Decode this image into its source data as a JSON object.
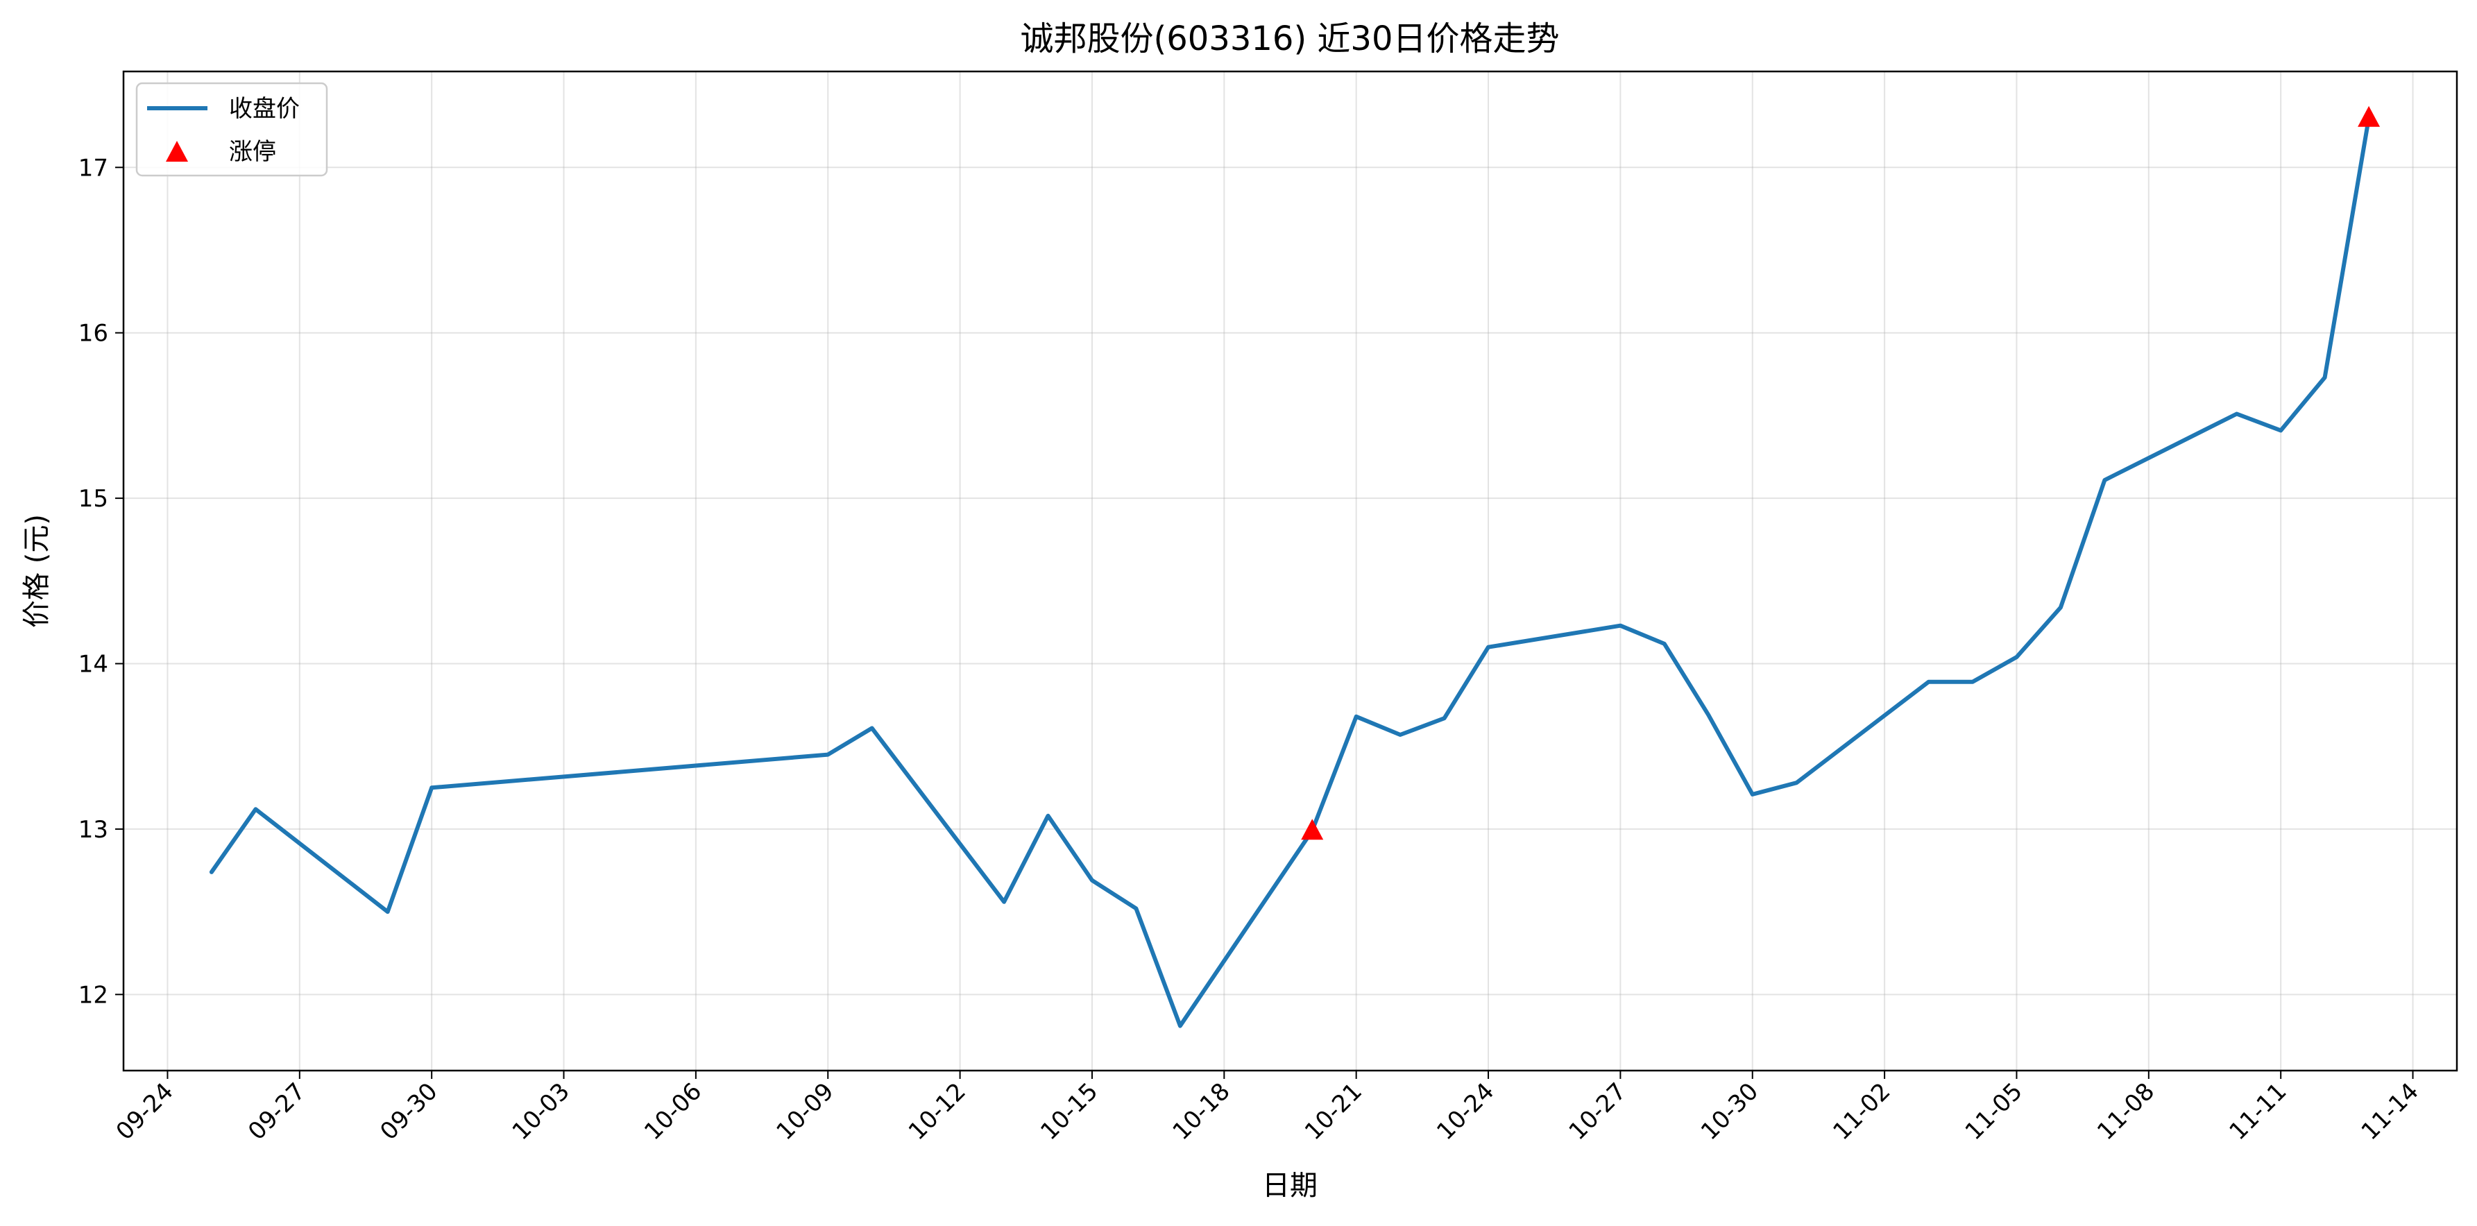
{
  "chart_data": {
    "type": "line",
    "title": "诚邦股份(603316) 近30日价格走势",
    "xlabel": "日期",
    "ylabel": "价格 (元)",
    "xlim": [
      "2025-09-23",
      "2025-11-15"
    ],
    "ylim": [
      11.54,
      17.58
    ],
    "grid": true,
    "legend_position": "top-left",
    "x_ticks": [
      {
        "date": "2025-09-24",
        "label": "09-24"
      },
      {
        "date": "2025-09-27",
        "label": "09-27"
      },
      {
        "date": "2025-09-30",
        "label": "09-30"
      },
      {
        "date": "2025-10-03",
        "label": "10-03"
      },
      {
        "date": "2025-10-06",
        "label": "10-06"
      },
      {
        "date": "2025-10-09",
        "label": "10-09"
      },
      {
        "date": "2025-10-12",
        "label": "10-12"
      },
      {
        "date": "2025-10-15",
        "label": "10-15"
      },
      {
        "date": "2025-10-18",
        "label": "10-18"
      },
      {
        "date": "2025-10-21",
        "label": "10-21"
      },
      {
        "date": "2025-10-24",
        "label": "10-24"
      },
      {
        "date": "2025-10-27",
        "label": "10-27"
      },
      {
        "date": "2025-10-30",
        "label": "10-30"
      },
      {
        "date": "2025-11-02",
        "label": "11-02"
      },
      {
        "date": "2025-11-05",
        "label": "11-05"
      },
      {
        "date": "2025-11-08",
        "label": "11-08"
      },
      {
        "date": "2025-11-11",
        "label": "11-11"
      },
      {
        "date": "2025-11-14",
        "label": "11-14"
      }
    ],
    "y_ticks": [
      {
        "value": 12,
        "label": "12"
      },
      {
        "value": 13,
        "label": "13"
      },
      {
        "value": 14,
        "label": "14"
      },
      {
        "value": 15,
        "label": "15"
      },
      {
        "value": 16,
        "label": "16"
      },
      {
        "value": 17,
        "label": "17"
      }
    ],
    "series": [
      {
        "name": "收盘价",
        "type": "line",
        "color": "#1f77b4",
        "x": [
          "2025-09-25",
          "2025-09-26",
          "2025-09-29",
          "2025-09-30",
          "2025-10-09",
          "2025-10-10",
          "2025-10-13",
          "2025-10-14",
          "2025-10-15",
          "2025-10-16",
          "2025-10-17",
          "2025-10-20",
          "2025-10-21",
          "2025-10-22",
          "2025-10-23",
          "2025-10-24",
          "2025-10-27",
          "2025-10-28",
          "2025-10-29",
          "2025-10-30",
          "2025-10-31",
          "2025-11-03",
          "2025-11-04",
          "2025-11-05",
          "2025-11-06",
          "2025-11-07",
          "2025-11-10",
          "2025-11-11",
          "2025-11-12",
          "2025-11-13"
        ],
        "y": [
          12.74,
          13.12,
          12.5,
          13.25,
          13.45,
          13.61,
          12.56,
          13.08,
          12.69,
          12.52,
          11.81,
          12.99,
          13.68,
          13.57,
          13.67,
          14.1,
          14.23,
          14.12,
          13.69,
          13.21,
          13.28,
          13.89,
          13.89,
          14.04,
          14.34,
          15.11,
          15.51,
          15.41,
          15.73,
          17.3
        ]
      },
      {
        "name": "涨停",
        "type": "scatter",
        "marker": "triangle-up",
        "color": "#ff0000",
        "x": [
          "2025-10-20",
          "2025-11-13"
        ],
        "y": [
          12.99,
          17.3
        ]
      }
    ]
  }
}
